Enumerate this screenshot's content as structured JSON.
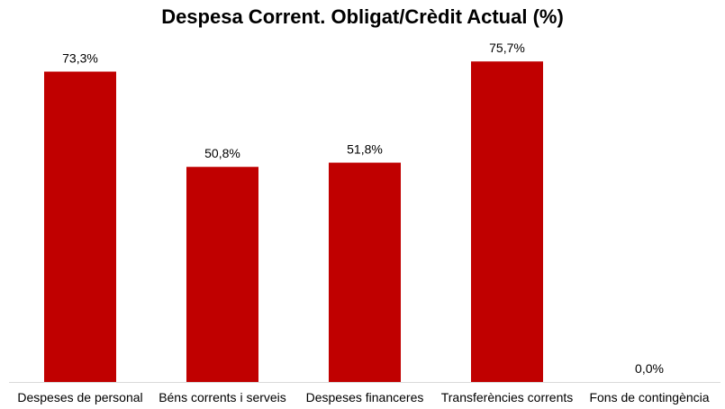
{
  "chart_data": {
    "type": "bar",
    "title": "Despesa Corrent. Obligat/Crèdit Actual (%)",
    "xlabel": "",
    "ylabel": "",
    "categories": [
      "Despeses de personal",
      "Béns corrents i serveis",
      "Despeses financeres",
      "Transferències corrents",
      "Fons de contingència"
    ],
    "values": [
      73.3,
      50.8,
      51.8,
      75.7,
      0.0
    ],
    "data_labels": [
      "73,3%",
      "50,8%",
      "51,8%",
      "75,7%",
      "0,0%"
    ],
    "ylim": [
      0,
      80
    ],
    "grid": false,
    "legend": "none",
    "bar_color": "#C00000",
    "axis_color": "#D9D9D9"
  }
}
